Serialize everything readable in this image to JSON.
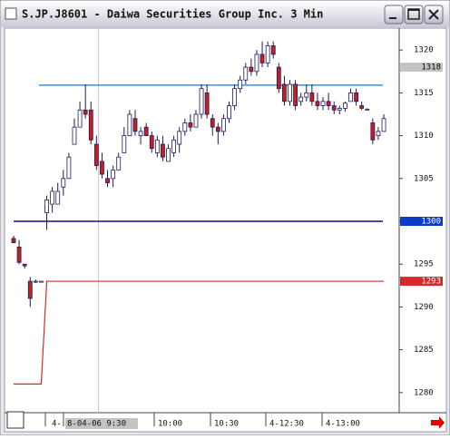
{
  "window": {
    "title": "S.JP.J8601 - Daiwa Securities Group Inc. 3 Min"
  },
  "chart_data": {
    "type": "candlestick",
    "open": [
      1298,
      1297,
      1295,
      1293,
      1293,
      1293,
      1301,
      1302,
      1302,
      1304,
      1305,
      1309,
      1311,
      1313,
      1313,
      1309,
      1307,
      1305,
      1305,
      1306,
      1308,
      1310,
      1312,
      1310,
      1311,
      1310,
      1308,
      1309,
      1307,
      1308,
      1309,
      1310.5,
      1311.5,
      1311,
      1312.5,
      1315,
      1312,
      1311,
      1310.5,
      1312,
      1313.5,
      1315.5,
      1316.5,
      1318,
      1317.5,
      1319.5,
      1318.5,
      1320.5,
      1318,
      1316,
      1314,
      1316,
      1314,
      1314.5,
      1315,
      1314,
      1313.5,
      1314,
      1313.5,
      1313,
      1313.2,
      1314,
      1315,
      1313.5,
      1313,
      1311.5,
      1310,
      1310.5
    ],
    "high": [
      1298.3,
      1297.8,
      1295,
      1293.5,
      1293.2,
      1293,
      1303,
      1304,
      1304.5,
      1306,
      1308,
      1312,
      1314,
      1316,
      1314,
      1310,
      1308,
      1306,
      1306.5,
      1308,
      1311,
      1313,
      1313,
      1311,
      1311.5,
      1310.5,
      1310,
      1310,
      1309,
      1310,
      1311,
      1312,
      1312.5,
      1313,
      1316,
      1316,
      1312.5,
      1311.5,
      1312.5,
      1314,
      1316,
      1317,
      1318.5,
      1319,
      1320,
      1321,
      1321,
      1321,
      1318.5,
      1317,
      1316.5,
      1316.5,
      1315,
      1316,
      1316,
      1315,
      1314.5,
      1315,
      1314,
      1313.5,
      1314,
      1315.5,
      1315.5,
      1314,
      1313.2,
      1312,
      1311,
      1312.5
    ],
    "low": [
      1297.5,
      1295,
      1294.5,
      1290,
      1292.8,
      1293,
      1299,
      1301,
      1302,
      1303,
      1305,
      1309,
      1311,
      1312,
      1309,
      1306,
      1305,
      1304,
      1304,
      1306,
      1308,
      1310,
      1310,
      1309,
      1310,
      1308,
      1307.5,
      1307,
      1307,
      1307.5,
      1308,
      1310,
      1310.5,
      1311,
      1312,
      1312,
      1310,
      1309,
      1310,
      1311.5,
      1313,
      1315,
      1316,
      1317,
      1317,
      1318,
      1318,
      1319,
      1315,
      1313.5,
      1313.5,
      1313,
      1313.5,
      1314,
      1313.5,
      1313,
      1313,
      1313,
      1312.5,
      1312.5,
      1312.8,
      1314,
      1313.5,
      1313,
      1313,
      1309,
      1309.5,
      1310.5
    ],
    "close": [
      1297.5,
      1295.2,
      1294.8,
      1291,
      1293,
      1293,
      1302.5,
      1303.5,
      1303.5,
      1305,
      1307.5,
      1311,
      1313,
      1312.5,
      1309.5,
      1306.5,
      1305.5,
      1304.5,
      1306,
      1307.5,
      1310,
      1312.5,
      1310.5,
      1310.5,
      1310,
      1308.5,
      1309.5,
      1307.5,
      1308.5,
      1309.5,
      1310.5,
      1311.5,
      1311,
      1312.5,
      1315.5,
      1312.5,
      1311,
      1310.5,
      1312,
      1313.5,
      1315.5,
      1316.5,
      1318,
      1317.5,
      1319.5,
      1318.5,
      1320.5,
      1319.5,
      1315.5,
      1314,
      1316,
      1313.5,
      1314.5,
      1315,
      1314,
      1313.5,
      1314,
      1313.5,
      1313,
      1313.2,
      1313.8,
      1315,
      1314,
      1313.2,
      1313.1,
      1309.5,
      1310.5,
      1312
    ],
    "up_color": "#ffffff",
    "down_color": "#c81e1e",
    "outline_color": "#1c1c5a",
    "ylim": [
      1277.65,
      1322.35
    ],
    "yticks": [
      1280,
      1285,
      1290,
      1295,
      1300,
      1305,
      1310,
      1315,
      1320
    ],
    "x_labels": [
      "4-",
      "8-04-06  9:30",
      "10:00",
      "10:30",
      "4-12:30",
      "4-13:00"
    ],
    "hlines": [
      {
        "value": 1315.9,
        "color": "#3a8fe0"
      },
      {
        "value": 1300,
        "color": "#10108c"
      }
    ],
    "stop_series": {
      "color": "#d42a2a",
      "values": [
        1281,
        1281,
        1281,
        1281,
        1281,
        1281,
        1293,
        1293,
        1293,
        1293,
        1293,
        1293,
        1293,
        1293,
        1293,
        1293,
        1293,
        1293,
        1293,
        1293,
        1293,
        1293,
        1293,
        1293,
        1293,
        1293,
        1293,
        1293,
        1293,
        1293,
        1293,
        1293,
        1293,
        1293,
        1293,
        1293,
        1293,
        1293,
        1293,
        1293,
        1293,
        1293,
        1293,
        1293,
        1293,
        1293,
        1293,
        1293,
        1293,
        1293,
        1293,
        1293,
        1293,
        1293,
        1293,
        1293,
        1293,
        1293,
        1293,
        1293,
        1293,
        1293,
        1293,
        1293,
        1293,
        1293,
        1293,
        1293
      ]
    },
    "price_markers": [
      {
        "value": 1318,
        "color": "#c4c4c4",
        "text_color": "#000000"
      },
      {
        "value": 1300,
        "color": "#0a3cc8",
        "text_color": "#ffffff"
      },
      {
        "value": 1293,
        "color": "#d42a2a",
        "text_color": "#ffffff"
      }
    ]
  }
}
